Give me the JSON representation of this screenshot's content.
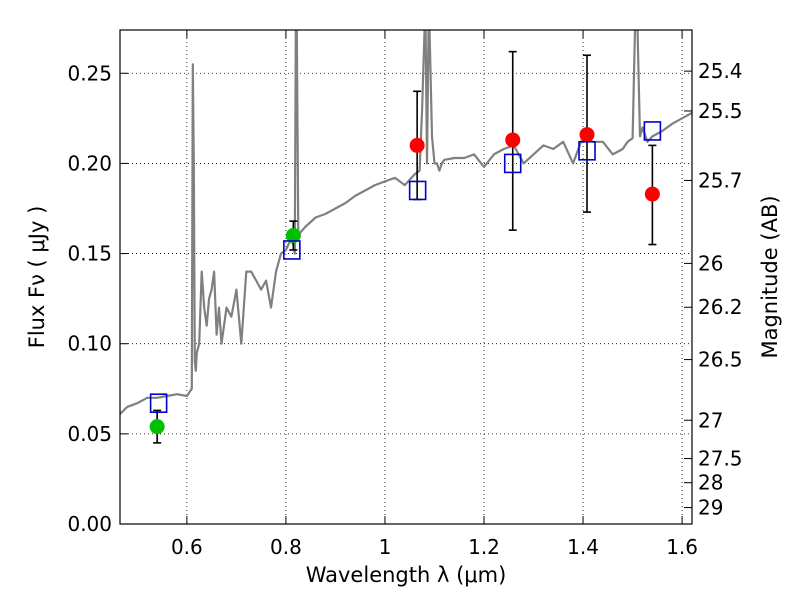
{
  "chart_data": {
    "type": "line",
    "title": "",
    "xlabel": "Wavelength  λ (μm)",
    "ylabel": "Flux  Fν  ( μJy )",
    "y2label": "Magnitude (AB)",
    "xlim": [
      0.465,
      1.62
    ],
    "ylim": [
      0.0,
      0.274
    ],
    "grid": true,
    "x_ticks": [
      0.6,
      0.8,
      1.0,
      1.2,
      1.4,
      1.6
    ],
    "x_tick_labels": [
      "0.6",
      "0.8",
      "1",
      "1.2",
      "1.4",
      "1.6"
    ],
    "y_ticks": [
      0.0,
      0.05,
      0.1,
      0.15,
      0.2,
      0.25
    ],
    "y_tick_labels": [
      "0.00",
      "0.05",
      "0.10",
      "0.15",
      "0.20",
      "0.25"
    ],
    "mag_ticks": [
      {
        "label": "25.4",
        "mag": 25.4
      },
      {
        "label": "25.5",
        "mag": 25.5
      },
      {
        "label": "25.7",
        "mag": 25.7
      },
      {
        "label": "26",
        "mag": 26.0
      },
      {
        "label": "26.2",
        "mag": 26.2
      },
      {
        "label": "26.5",
        "mag": 26.5
      },
      {
        "label": "27",
        "mag": 27.0
      },
      {
        "label": "27.5",
        "mag": 27.5
      },
      {
        "label": "28",
        "mag": 28.0
      },
      {
        "label": "29",
        "mag": 29.0
      }
    ],
    "colors": {
      "model": "#808080",
      "green_points": "#00c000",
      "red_points": "#ff0000",
      "squares": "#0000cc",
      "errorbars": "#000000"
    },
    "series": [
      {
        "name": "model spectrum",
        "kind": "line",
        "x": [
          0.465,
          0.48,
          0.5,
          0.52,
          0.54,
          0.56,
          0.58,
          0.6,
          0.61,
          0.612,
          0.614,
          0.616,
          0.618,
          0.62,
          0.625,
          0.63,
          0.635,
          0.64,
          0.645,
          0.65,
          0.655,
          0.66,
          0.665,
          0.67,
          0.68,
          0.69,
          0.7,
          0.71,
          0.72,
          0.73,
          0.74,
          0.75,
          0.76,
          0.77,
          0.78,
          0.79,
          0.8,
          0.81,
          0.815,
          0.818,
          0.82,
          0.822,
          0.825,
          0.83,
          0.84,
          0.86,
          0.88,
          0.9,
          0.92,
          0.94,
          0.96,
          0.98,
          1.0,
          1.02,
          1.04,
          1.06,
          1.07,
          1.075,
          1.08,
          1.082,
          1.085,
          1.088,
          1.09,
          1.095,
          1.1,
          1.105,
          1.11,
          1.115,
          1.12,
          1.14,
          1.16,
          1.18,
          1.2,
          1.22,
          1.24,
          1.26,
          1.28,
          1.3,
          1.32,
          1.34,
          1.36,
          1.38,
          1.4,
          1.42,
          1.44,
          1.46,
          1.48,
          1.49,
          1.5,
          1.505,
          1.51,
          1.515,
          1.52,
          1.53,
          1.54,
          1.56,
          1.58,
          1.6,
          1.62
        ],
        "y": [
          0.061,
          0.065,
          0.067,
          0.07,
          0.07,
          0.071,
          0.072,
          0.071,
          0.075,
          0.255,
          0.2,
          0.09,
          0.085,
          0.095,
          0.1,
          0.14,
          0.12,
          0.11,
          0.125,
          0.13,
          0.14,
          0.105,
          0.12,
          0.1,
          0.12,
          0.115,
          0.13,
          0.1,
          0.14,
          0.14,
          0.135,
          0.13,
          0.135,
          0.12,
          0.14,
          0.15,
          0.152,
          0.158,
          0.155,
          0.15,
          0.275,
          0.275,
          0.16,
          0.162,
          0.165,
          0.17,
          0.172,
          0.175,
          0.178,
          0.182,
          0.185,
          0.188,
          0.19,
          0.192,
          0.188,
          0.194,
          0.196,
          0.23,
          0.275,
          0.275,
          0.2,
          0.275,
          0.275,
          0.215,
          0.2,
          0.2,
          0.196,
          0.2,
          0.202,
          0.203,
          0.203,
          0.205,
          0.198,
          0.205,
          0.208,
          0.21,
          0.2,
          0.205,
          0.21,
          0.208,
          0.212,
          0.2,
          0.215,
          0.212,
          0.212,
          0.205,
          0.208,
          0.212,
          0.214,
          0.275,
          0.275,
          0.215,
          0.22,
          0.212,
          0.215,
          0.218,
          0.222,
          0.225,
          0.228
        ]
      },
      {
        "name": "green points",
        "kind": "errorbar-circle",
        "x": [
          0.54,
          0.815
        ],
        "y": [
          0.054,
          0.16
        ],
        "yerr_low": [
          0.045,
          0.152
        ],
        "yerr_high": [
          0.063,
          0.168
        ]
      },
      {
        "name": "red points",
        "kind": "errorbar-circle",
        "x": [
          1.065,
          1.258,
          1.408,
          1.54
        ],
        "y": [
          0.21,
          0.213,
          0.216,
          0.183
        ],
        "yerr_low": [
          0.18,
          0.163,
          0.173,
          0.155
        ],
        "yerr_high": [
          0.24,
          0.262,
          0.26,
          0.21
        ]
      },
      {
        "name": "model band fluxes",
        "kind": "open-square",
        "x": [
          0.543,
          0.812,
          1.066,
          1.258,
          1.408,
          1.54
        ],
        "y": [
          0.067,
          0.152,
          0.185,
          0.2,
          0.207,
          0.218
        ]
      }
    ]
  }
}
